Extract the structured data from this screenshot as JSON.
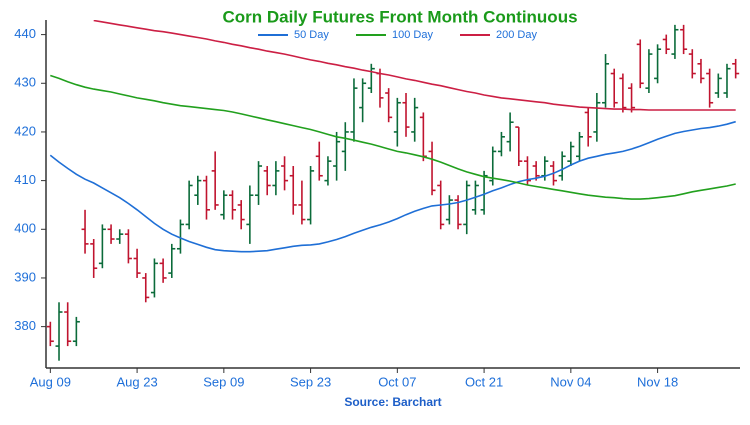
{
  "chart_data": {
    "type": "ohlc",
    "title": "Corn Daily Futures Front Month Continuous",
    "title_color": "#1a9a1a",
    "source": "Source: Barchart",
    "source_color": "#1e5fc8",
    "categories": [
      "Aug 09",
      null,
      null,
      null,
      null,
      null,
      null,
      null,
      null,
      null,
      "Aug 23",
      null,
      null,
      null,
      null,
      null,
      null,
      null,
      null,
      null,
      "Sep 09",
      null,
      null,
      null,
      null,
      null,
      null,
      null,
      null,
      null,
      "Sep 23",
      null,
      null,
      null,
      null,
      null,
      null,
      null,
      null,
      null,
      "Oct 07",
      null,
      null,
      null,
      null,
      null,
      null,
      null,
      null,
      null,
      "Oct 21",
      null,
      null,
      null,
      null,
      null,
      null,
      null,
      null,
      null,
      "Nov 04",
      null,
      null,
      null,
      null,
      null,
      null,
      null,
      null,
      null,
      "Nov 18",
      null,
      null,
      null,
      null,
      null,
      null,
      null,
      null,
      null
    ],
    "open": [
      380,
      376,
      383,
      377,
      400,
      397,
      393,
      400,
      398,
      399,
      394,
      390,
      387,
      393,
      391,
      396,
      401,
      407,
      410,
      412,
      403,
      407,
      405,
      401,
      407,
      412,
      409,
      413,
      411,
      405,
      402,
      415,
      410,
      413,
      416,
      420,
      425,
      429,
      432,
      428,
      420,
      426,
      420,
      423,
      416,
      409,
      402,
      406,
      401,
      404,
      404,
      410,
      416,
      418,
      421,
      414,
      413,
      411,
      413,
      411,
      414,
      415,
      424,
      420,
      426,
      432,
      431,
      429,
      438,
      429,
      431,
      439,
      436,
      441,
      436,
      434,
      432,
      428,
      428,
      434
    ],
    "high": [
      381,
      385,
      385,
      382,
      404,
      398,
      401,
      401,
      400,
      400,
      396,
      391,
      394,
      394,
      397,
      402,
      410,
      411,
      411,
      416,
      408,
      408,
      406,
      409,
      414,
      413,
      414,
      415,
      413,
      410,
      413,
      418,
      415,
      420,
      422,
      431,
      431,
      434,
      433,
      429,
      427,
      428,
      427,
      424,
      418,
      410,
      407,
      407,
      410,
      410,
      412,
      417,
      420,
      424,
      421,
      415,
      414,
      415,
      414,
      416,
      418,
      420,
      425,
      428,
      436,
      433,
      432,
      430,
      439,
      437,
      438,
      440,
      442,
      442,
      437,
      435,
      433,
      432,
      434,
      435
    ],
    "low": [
      376,
      373,
      376,
      376,
      395,
      390,
      392,
      397,
      397,
      393,
      390,
      385,
      386,
      389,
      390,
      395,
      400,
      405,
      402,
      404,
      402,
      402,
      400,
      397,
      405,
      407,
      407,
      408,
      403,
      401,
      401,
      410,
      409,
      410,
      412,
      418,
      422,
      428,
      425,
      422,
      417,
      419,
      418,
      414,
      407,
      400,
      401,
      400,
      399,
      403,
      403,
      409,
      415,
      416,
      413,
      409,
      410,
      410,
      409,
      410,
      413,
      414,
      417,
      418,
      425,
      425,
      424,
      424,
      429,
      428,
      430,
      436,
      435,
      436,
      431,
      430,
      425,
      427,
      427,
      431
    ],
    "close": [
      377,
      383,
      377,
      381,
      397,
      392,
      400,
      398,
      399,
      394,
      391,
      386,
      393,
      390,
      396,
      401,
      409,
      410,
      404,
      405,
      407,
      404,
      402,
      407,
      413,
      409,
      412,
      410,
      405,
      402,
      412,
      411,
      414,
      418,
      420,
      429,
      430,
      433,
      427,
      423,
      426,
      421,
      425,
      415,
      408,
      401,
      406,
      401,
      409,
      409,
      411,
      416,
      419,
      422,
      414,
      410,
      411,
      414,
      410,
      415,
      417,
      419,
      419,
      426,
      434,
      426,
      425,
      425,
      430,
      436,
      437,
      437,
      441,
      437,
      432,
      431,
      426,
      431,
      433,
      432
    ],
    "up_color": "#0b6b3a",
    "down_color": "#c0142f",
    "series": [
      {
        "name": "50 Day",
        "color": "#1f6fd6",
        "values": [
          415.2,
          413.8,
          412.5,
          411.3,
          410.3,
          409.5,
          408.5,
          407.5,
          406.5,
          405.3,
          404.0,
          402.6,
          401.2,
          400.0,
          399.0,
          398.2,
          397.5,
          396.9,
          396.3,
          395.8,
          395.6,
          395.5,
          395.4,
          395.4,
          395.5,
          395.6,
          395.9,
          396.2,
          396.5,
          396.7,
          396.8,
          397.0,
          397.4,
          397.9,
          398.5,
          399.2,
          399.8,
          400.4,
          400.9,
          401.5,
          402.2,
          403.0,
          403.7,
          404.3,
          404.8,
          405.0,
          405.2,
          405.5,
          406.0,
          406.6,
          407.2,
          407.9,
          408.5,
          409.2,
          409.8,
          410.2,
          410.5,
          410.9,
          411.5,
          412.3,
          413.2,
          414.0,
          414.6,
          415.0,
          415.4,
          415.7,
          416.0,
          416.5,
          417.1,
          417.8,
          418.5,
          419.1,
          419.7,
          420.1,
          420.4,
          420.7,
          420.9,
          421.2,
          421.6,
          422.1
        ]
      },
      {
        "name": "100 Day",
        "color": "#22a01e",
        "values": [
          431.6,
          431.0,
          430.3,
          429.7,
          429.2,
          428.8,
          428.5,
          428.2,
          427.8,
          427.4,
          427.0,
          426.7,
          426.4,
          426.0,
          425.7,
          425.4,
          425.2,
          425.0,
          424.8,
          424.6,
          424.4,
          424.1,
          423.7,
          423.3,
          422.9,
          422.5,
          422.1,
          421.7,
          421.3,
          420.9,
          420.5,
          420.0,
          419.5,
          419.0,
          418.7,
          418.3,
          417.9,
          417.5,
          417.0,
          416.5,
          416.0,
          415.7,
          415.3,
          414.9,
          414.4,
          413.8,
          413.1,
          412.4,
          411.8,
          411.3,
          410.8,
          410.5,
          410.2,
          409.9,
          409.5,
          409.1,
          408.8,
          408.5,
          408.2,
          407.9,
          407.6,
          407.3,
          407.0,
          406.8,
          406.6,
          406.5,
          406.3,
          406.2,
          406.2,
          406.3,
          406.5,
          406.7,
          406.9,
          407.3,
          407.7,
          408.0,
          408.3,
          408.6,
          408.9,
          409.3
        ]
      },
      {
        "name": "200 Day",
        "color": "#cc1f44",
        "values": [
          null,
          null,
          null,
          null,
          null,
          442.9,
          442.6,
          442.3,
          442.0,
          441.7,
          441.4,
          441.1,
          440.8,
          440.6,
          440.3,
          440.0,
          439.7,
          439.4,
          439.1,
          438.7,
          438.4,
          438.0,
          437.7,
          437.3,
          437.0,
          436.6,
          436.3,
          436.0,
          435.6,
          435.2,
          434.8,
          434.5,
          434.1,
          433.8,
          433.4,
          433.1,
          432.7,
          432.4,
          432.0,
          431.7,
          431.3,
          430.9,
          430.6,
          430.2,
          429.8,
          429.5,
          429.1,
          428.7,
          428.3,
          428.0,
          427.6,
          427.3,
          427.0,
          426.8,
          426.6,
          426.4,
          426.2,
          426.0,
          425.7,
          425.5,
          425.3,
          425.1,
          425.0,
          424.9,
          424.8,
          424.7,
          424.7,
          424.6,
          424.6,
          424.5,
          424.5,
          424.5,
          424.5,
          424.5,
          424.5,
          424.5,
          424.5,
          424.5,
          424.5,
          424.5
        ]
      }
    ],
    "ylim": [
      371.5,
      443
    ],
    "yticks": [
      380,
      390,
      400,
      410,
      420,
      430,
      440
    ],
    "tick_color": "#1e6fd9",
    "legend": "top"
  }
}
